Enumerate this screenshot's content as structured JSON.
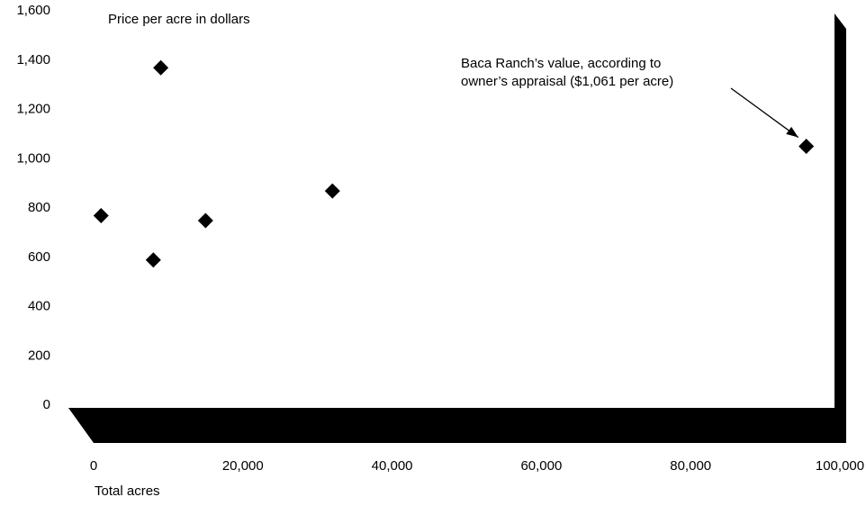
{
  "chart_data": {
    "type": "scatter",
    "ylabel": "Price per acre in dollars",
    "xlabel": "Total acres",
    "xlim": [
      0,
      100000
    ],
    "ylim": [
      0,
      1600
    ],
    "x_ticks": [
      0,
      20000,
      40000,
      60000,
      80000,
      100000
    ],
    "x_tick_labels": [
      "0",
      "20,000",
      "40,000",
      "60,000",
      "80,000",
      "100,000"
    ],
    "y_ticks": [
      0,
      200,
      400,
      600,
      800,
      1000,
      1200,
      1400,
      1600
    ],
    "y_tick_labels": [
      "0",
      "200",
      "400",
      "600",
      "800",
      "1,000",
      "1,200",
      "1,400",
      "1,600"
    ],
    "grid": false,
    "marker": "diamond",
    "points": [
      {
        "x": 1000,
        "y": 780
      },
      {
        "x": 8000,
        "y": 600
      },
      {
        "x": 9000,
        "y": 1380
      },
      {
        "x": 15000,
        "y": 760
      },
      {
        "x": 32000,
        "y": 880
      },
      {
        "x": 95500,
        "y": 1061
      }
    ],
    "annotation": {
      "text_line1": "Baca Ranch’s value, according to",
      "text_line2": "owner’s appraisal ($1,061 per acre)",
      "x": 95500,
      "y": 1061
    },
    "colors": {
      "marker": "#000000",
      "frame": "#000000",
      "background": "#ffffff"
    }
  }
}
